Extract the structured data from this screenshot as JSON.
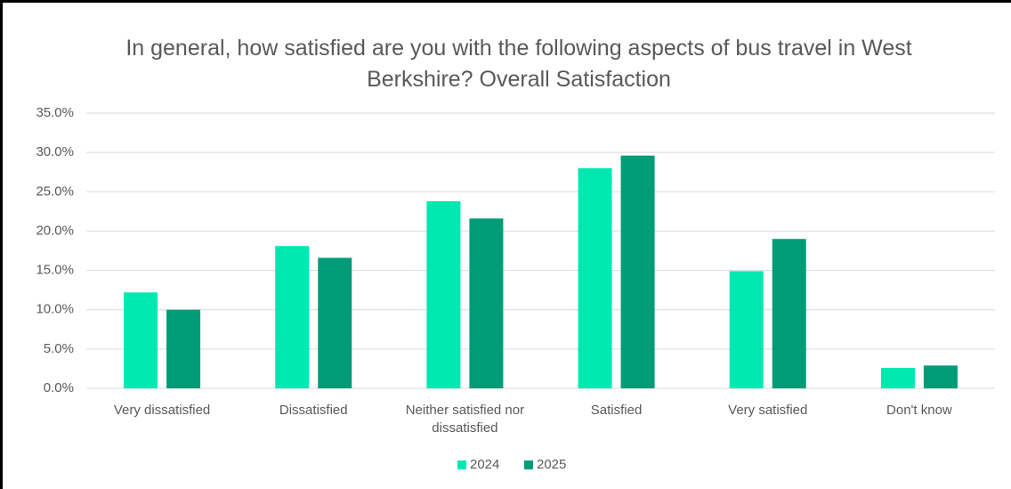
{
  "chart_data": {
    "type": "bar",
    "title": "In general, how satisfied are you with the following aspects of bus travel in West Berkshire? Overall Satisfaction",
    "categories": [
      "Very dissatisfied",
      "Dissatisfied",
      "Neither satisfied nor dissatisfied",
      "Satisfied",
      "Very satisfied",
      "Don't know"
    ],
    "series": [
      {
        "name": "2024",
        "color": "#00e8b2",
        "values": [
          12.2,
          18.1,
          23.8,
          28.0,
          14.9,
          2.6
        ]
      },
      {
        "name": "2025",
        "color": "#009b77",
        "values": [
          10.0,
          16.6,
          21.6,
          29.6,
          19.0,
          2.9
        ]
      }
    ],
    "ylim": [
      0,
      35
    ],
    "yticks": [
      {
        "value": 0,
        "label": "0.0%"
      },
      {
        "value": 5,
        "label": "5.0%"
      },
      {
        "value": 10,
        "label": "10.0%"
      },
      {
        "value": 15,
        "label": "15.0%"
      },
      {
        "value": 20,
        "label": "20.0%"
      },
      {
        "value": 25,
        "label": "25.0%"
      },
      {
        "value": 30,
        "label": "30.0%"
      },
      {
        "value": 35,
        "label": "35.0%"
      }
    ],
    "grid": true,
    "legend": "bottom"
  }
}
